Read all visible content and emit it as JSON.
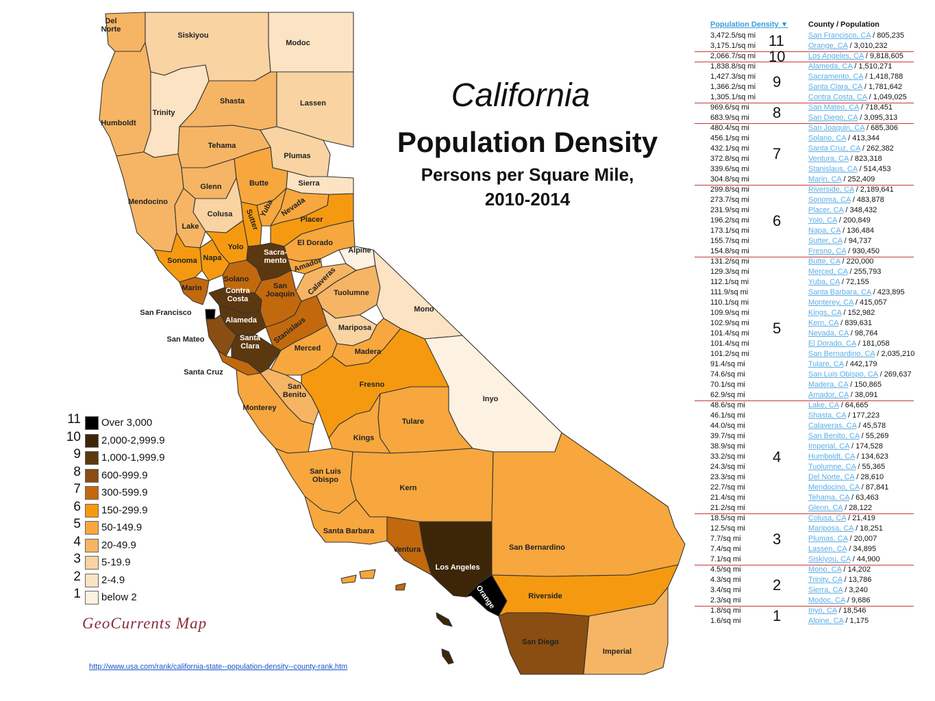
{
  "title": {
    "line1": "California",
    "line2": "Population Density",
    "line3": "Persons per Square Mile,",
    "line4": "2010-2014"
  },
  "legend": [
    {
      "rank": "11",
      "label": "Over 3,000",
      "color": "#000000"
    },
    {
      "rank": "10",
      "label": "2,000-2,999.9",
      "color": "#3d2608"
    },
    {
      "rank": "9",
      "label": "1,000-1,999.9",
      "color": "#5c3810"
    },
    {
      "rank": "8",
      "label": "600-999.9",
      "color": "#8a4d12"
    },
    {
      "rank": "7",
      "label": "300-599.9",
      "color": "#c2690e"
    },
    {
      "rank": "6",
      "label": "150-299.9",
      "color": "#f59a10"
    },
    {
      "rank": "5",
      "label": "50-149.9",
      "color": "#f7a73d"
    },
    {
      "rank": "4",
      "label": "20-49.9",
      "color": "#f6b564"
    },
    {
      "rank": "3",
      "label": "5-19.9",
      "color": "#f9d3a2"
    },
    {
      "rank": "2",
      "label": "2-4.9",
      "color": "#fbe3c3"
    },
    {
      "rank": "1",
      "label": "below 2",
      "color": "#fdf1e2"
    }
  ],
  "credit": "GeoCurrents Map",
  "source_url": "http://www.usa.com/rank/california-state--population-density--county-rank.htm",
  "table": {
    "header_density": "Population Density ▼",
    "header_county": "County / Population",
    "rows": [
      {
        "density": "3,472.5/sq mi",
        "county": "San Francisco, CA",
        "pop": " / 805,235"
      },
      {
        "density": "3,175.1/sq mi",
        "county": "Orange, CA",
        "pop": " / 3,010,232"
      },
      {
        "density": "2,066.7/sq mi",
        "county": "Los Angeles, CA",
        "pop": " / 9,818,605"
      },
      {
        "density": "1,838.8/sq mi",
        "county": "Alameda, CA",
        "pop": " / 1,510,271"
      },
      {
        "density": "1,427.3/sq mi",
        "county": "Sacramento, CA",
        "pop": " / 1,418,788"
      },
      {
        "density": "1,366.2/sq mi",
        "county": "Santa Clara, CA",
        "pop": " / 1,781,642"
      },
      {
        "density": "1,305.1/sq mi",
        "county": "Contra Costa, CA",
        "pop": " / 1,049,025"
      },
      {
        "density": "969.6/sq mi",
        "county": "San Mateo, CA",
        "pop": " / 718,451"
      },
      {
        "density": "683.9/sq mi",
        "county": "San Diego, CA",
        "pop": " / 3,095,313"
      },
      {
        "density": "480.4/sq mi",
        "county": "San Joaquin, CA",
        "pop": " / 685,306"
      },
      {
        "density": "456.1/sq mi",
        "county": "Solano, CA",
        "pop": " / 413,344"
      },
      {
        "density": "432.1/sq mi",
        "county": "Santa Cruz, CA",
        "pop": " / 262,382"
      },
      {
        "density": "372.8/sq mi",
        "county": "Ventura, CA",
        "pop": " / 823,318"
      },
      {
        "density": "339.6/sq mi",
        "county": "Stanislaus, CA",
        "pop": " / 514,453"
      },
      {
        "density": "304.8/sq mi",
        "county": "Marin, CA",
        "pop": " / 252,409"
      },
      {
        "density": "299.8/sq mi",
        "county": "Riverside, CA",
        "pop": " / 2,189,641"
      },
      {
        "density": "273.7/sq mi",
        "county": "Sonoma, CA",
        "pop": " / 483,878"
      },
      {
        "density": "231.9/sq mi",
        "county": "Placer, CA",
        "pop": " / 348,432"
      },
      {
        "density": "196.2/sq mi",
        "county": "Yolo, CA",
        "pop": " / 200,849"
      },
      {
        "density": "173.1/sq mi",
        "county": "Napa, CA",
        "pop": " / 136,484"
      },
      {
        "density": "155.7/sq mi",
        "county": "Sutter, CA",
        "pop": " / 94,737"
      },
      {
        "density": "154.8/sq mi",
        "county": "Fresno, CA",
        "pop": " / 930,450"
      },
      {
        "density": "131.2/sq mi",
        "county": "Butte, CA",
        "pop": " / 220,000"
      },
      {
        "density": "129.3/sq mi",
        "county": "Merced, CA",
        "pop": " / 255,793"
      },
      {
        "density": "112.1/sq mi",
        "county": "Yuba, CA",
        "pop": " / 72,155"
      },
      {
        "density": "111.9/sq mi",
        "county": "Santa Barbara, CA",
        "pop": " / 423,895"
      },
      {
        "density": "110.1/sq mi",
        "county": "Monterey, CA",
        "pop": " / 415,057"
      },
      {
        "density": "109.9/sq mi",
        "county": "Kings, CA",
        "pop": " / 152,982"
      },
      {
        "density": "102.9/sq mi",
        "county": "Kern, CA",
        "pop": " / 839,631"
      },
      {
        "density": "101.4/sq mi",
        "county": "Nevada, CA",
        "pop": " / 98,764"
      },
      {
        "density": "101.4/sq mi",
        "county": "El Dorado, CA",
        "pop": " / 181,058"
      },
      {
        "density": "101.2/sq mi",
        "county": "San Bernardino, CA",
        "pop": " / 2,035,210"
      },
      {
        "density": "91.4/sq mi",
        "county": "Tulare, CA",
        "pop": " / 442,179"
      },
      {
        "density": "74.6/sq mi",
        "county": "San Luis Obispo, CA",
        "pop": " / 269,637"
      },
      {
        "density": "70.1/sq mi",
        "county": "Madera, CA",
        "pop": " / 150,865"
      },
      {
        "density": "62.9/sq mi",
        "county": "Amador, CA",
        "pop": " / 38,091"
      },
      {
        "density": "48.6/sq mi",
        "county": "Lake, CA",
        "pop": " / 64,665"
      },
      {
        "density": "46.1/sq mi",
        "county": "Shasta, CA",
        "pop": " / 177,223"
      },
      {
        "density": "44.0/sq mi",
        "county": "Calaveras, CA",
        "pop": " / 45,578"
      },
      {
        "density": "39.7/sq mi",
        "county": "San Benito, CA",
        "pop": " / 55,269"
      },
      {
        "density": "38.9/sq mi",
        "county": "Imperial, CA",
        "pop": " / 174,528"
      },
      {
        "density": "33.2/sq mi",
        "county": "Humboldt, CA",
        "pop": " / 134,623"
      },
      {
        "density": "24.3/sq mi",
        "county": "Tuolumne, CA",
        "pop": " / 55,365"
      },
      {
        "density": "23.3/sq mi",
        "county": "Del Norte, CA",
        "pop": " / 28,610"
      },
      {
        "density": "22.7/sq mi",
        "county": "Mendocino, CA",
        "pop": " / 87,841"
      },
      {
        "density": "21.4/sq mi",
        "county": "Tehama, CA",
        "pop": " / 63,463"
      },
      {
        "density": "21.2/sq mi",
        "county": "Glenn, CA",
        "pop": " / 28,122"
      },
      {
        "density": "18.5/sq mi",
        "county": "Colusa, CA",
        "pop": " / 21,419"
      },
      {
        "density": "12.5/sq mi",
        "county": "Mariposa, CA",
        "pop": " / 18,251"
      },
      {
        "density": "7.7/sq mi",
        "county": "Plumas, CA",
        "pop": " / 20,007"
      },
      {
        "density": "7.4/sq mi",
        "county": "Lassen, CA",
        "pop": " / 34,895"
      },
      {
        "density": "7.1/sq mi",
        "county": "Siskiyou, CA",
        "pop": " / 44,900"
      },
      {
        "density": "4.5/sq mi",
        "county": "Mono, CA",
        "pop": " / 14,202"
      },
      {
        "density": "4.3/sq mi",
        "county": "Trinity, CA",
        "pop": " / 13,786"
      },
      {
        "density": "3.4/sq mi",
        "county": "Sierra, CA",
        "pop": " / 3,240"
      },
      {
        "density": "2.3/sq mi",
        "county": "Modoc, CA",
        "pop": " / 9,686"
      },
      {
        "density": "1.8/sq mi",
        "county": "Inyo, CA",
        "pop": " / 18,546"
      },
      {
        "density": "1.6/sq mi",
        "county": "Alpine, CA",
        "pop": " / 1,175"
      }
    ],
    "group_ranks": [
      "11",
      "10",
      "9",
      "8",
      "7",
      "6",
      "5",
      "4",
      "3",
      "2",
      "1"
    ],
    "group_sizes": [
      2,
      1,
      4,
      2,
      6,
      7,
      14,
      11,
      5,
      4,
      2
    ]
  },
  "counties": [
    {
      "name": "Del Norte",
      "label": "Del\nNorte",
      "rank": 4
    },
    {
      "name": "Siskiyou",
      "label": "Siskiyou",
      "rank": 3
    },
    {
      "name": "Modoc",
      "label": "Modoc",
      "rank": 2
    },
    {
      "name": "Humboldt",
      "label": "Humboldt",
      "rank": 4
    },
    {
      "name": "Trinity",
      "label": "Trinity",
      "rank": 2
    },
    {
      "name": "Shasta",
      "label": "Shasta",
      "rank": 4
    },
    {
      "name": "Lassen",
      "label": "Lassen",
      "rank": 3
    },
    {
      "name": "Tehama",
      "label": "Tehama",
      "rank": 4
    },
    {
      "name": "Plumas",
      "label": "Plumas",
      "rank": 3
    },
    {
      "name": "Mendocino",
      "label": "Mendocino",
      "rank": 4
    },
    {
      "name": "Glenn",
      "label": "Glenn",
      "rank": 4
    },
    {
      "name": "Butte",
      "label": "Butte",
      "rank": 5
    },
    {
      "name": "Sierra",
      "label": "Sierra",
      "rank": 2
    },
    {
      "name": "Colusa",
      "label": "Colusa",
      "rank": 3
    },
    {
      "name": "Lake",
      "label": "Lake",
      "rank": 4
    },
    {
      "name": "Yuba",
      "label": "Yuba",
      "rank": 5
    },
    {
      "name": "Nevada",
      "label": "Nevada",
      "rank": 5
    },
    {
      "name": "Sutter",
      "label": "Sutter",
      "rank": 6
    },
    {
      "name": "Placer",
      "label": "Placer",
      "rank": 6
    },
    {
      "name": "Yolo",
      "label": "Yolo",
      "rank": 6
    },
    {
      "name": "El Dorado",
      "label": "El Dorado",
      "rank": 5
    },
    {
      "name": "Alpine",
      "label": "Alpine",
      "rank": 1
    },
    {
      "name": "Sonoma",
      "label": "Sonoma",
      "rank": 6
    },
    {
      "name": "Napa",
      "label": "Napa",
      "rank": 6
    },
    {
      "name": "Sacramento",
      "label": "Sacra-\nmento",
      "rank": 9
    },
    {
      "name": "Amador",
      "label": "Amador",
      "rank": 5
    },
    {
      "name": "Solano",
      "label": "Solano",
      "rank": 7
    },
    {
      "name": "Marin",
      "label": "Marin",
      "rank": 7
    },
    {
      "name": "Calaveras",
      "label": "Calaveras",
      "rank": 4
    },
    {
      "name": "Tuolumne",
      "label": "Tuolumne",
      "rank": 4
    },
    {
      "name": "Mono",
      "label": "Mono",
      "rank": 2
    },
    {
      "name": "Contra Costa",
      "label": "Contra\nCosta",
      "rank": 9
    },
    {
      "name": "San Joaquin",
      "label": "San\nJoaquin",
      "rank": 7
    },
    {
      "name": "San Francisco",
      "label": "San Francisco",
      "rank": 11
    },
    {
      "name": "Alameda",
      "label": "Alameda",
      "rank": 9
    },
    {
      "name": "Stanislaus",
      "label": "Stanislaus",
      "rank": 7
    },
    {
      "name": "Mariposa",
      "label": "Mariposa",
      "rank": 3
    },
    {
      "name": "San Mateo",
      "label": "San Mateo",
      "rank": 8
    },
    {
      "name": "Santa Clara",
      "label": "Santa\nClara",
      "rank": 9
    },
    {
      "name": "Merced",
      "label": "Merced",
      "rank": 5
    },
    {
      "name": "Madera",
      "label": "Madera",
      "rank": 5
    },
    {
      "name": "Santa Cruz",
      "label": "Santa Cruz",
      "rank": 7
    },
    {
      "name": "San Benito",
      "label": "San\nBenito",
      "rank": 4
    },
    {
      "name": "Fresno",
      "label": "Fresno",
      "rank": 6
    },
    {
      "name": "Inyo",
      "label": "Inyo",
      "rank": 1
    },
    {
      "name": "Monterey",
      "label": "Monterey",
      "rank": 5
    },
    {
      "name": "Tulare",
      "label": "Tulare",
      "rank": 5
    },
    {
      "name": "Kings",
      "label": "Kings",
      "rank": 5
    },
    {
      "name": "San Luis Obispo",
      "label": "San Luis\nObispo",
      "rank": 5
    },
    {
      "name": "Kern",
      "label": "Kern",
      "rank": 5
    },
    {
      "name": "Santa Barbara",
      "label": "Santa Barbara",
      "rank": 5
    },
    {
      "name": "Ventura",
      "label": "Ventura",
      "rank": 7
    },
    {
      "name": "Los Angeles",
      "label": "Los Angeles",
      "rank": 10
    },
    {
      "name": "San Bernardino",
      "label": "San Bernardino",
      "rank": 5
    },
    {
      "name": "Orange",
      "label": "Orange",
      "rank": 11
    },
    {
      "name": "Riverside",
      "label": "Riverside",
      "rank": 6
    },
    {
      "name": "San Diego",
      "label": "San Diego",
      "rank": 8
    },
    {
      "name": "Imperial",
      "label": "Imperial",
      "rank": 4
    }
  ]
}
